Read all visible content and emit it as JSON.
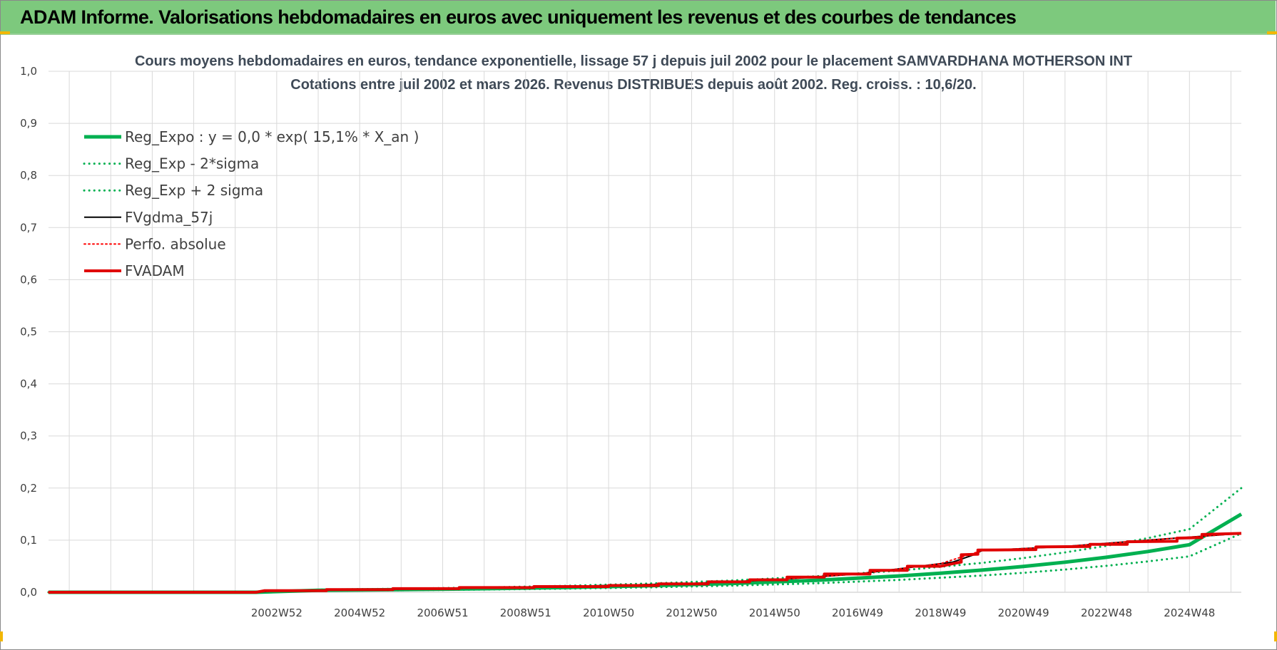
{
  "banner": {
    "title": "ADAM Informe. Valorisations hebdomadaires en euros avec uniquement les revenus et des courbes de tendances",
    "background": "#7dc97d"
  },
  "chart_data": {
    "type": "line",
    "title_line1": "Cours moyens hebdomadaires en euros, tendance exponentielle, lissage 57 j depuis juil 2002 pour le placement SAMVARDHANA MOTHERSON INT",
    "title_line2": "Cotations entre juil 2002 et mars 2026. Revenus DISTRIBUES depuis août 2002. Reg. croiss. : 10,6/20.",
    "ylim": [
      0,
      1.0
    ],
    "y_ticks": [
      "0,0",
      "0,1",
      "0,2",
      "0,3",
      "0,4",
      "0,5",
      "0,6",
      "0,7",
      "0,8",
      "0,9",
      "1,0"
    ],
    "xlim": [
      1997.5,
      2026.25
    ],
    "x_ticks": [
      {
        "label": "2002W52",
        "value": 2003.0
      },
      {
        "label": "2004W52",
        "value": 2005.0
      },
      {
        "label": "2006W51",
        "value": 2007.0
      },
      {
        "label": "2008W51",
        "value": 2009.0
      },
      {
        "label": "2010W50",
        "value": 2011.0
      },
      {
        "label": "2012W50",
        "value": 2013.0
      },
      {
        "label": "2014W50",
        "value": 2015.0
      },
      {
        "label": "2016W49",
        "value": 2017.0
      },
      {
        "label": "2018W49",
        "value": 2019.0
      },
      {
        "label": "2020W49",
        "value": 2021.0
      },
      {
        "label": "2022W48",
        "value": 2023.0
      },
      {
        "label": "2024W48",
        "value": 2025.0
      }
    ],
    "grid": true,
    "legend_position": "top-left",
    "series": [
      {
        "name": "Reg_Expo : y = 0,0 * exp( 15,1% *  X_an )",
        "color": "#00b050",
        "style": "solid",
        "width": 5,
        "x": [
          1997.5,
          2002.5,
          2004.0,
          2006.0,
          2008.0,
          2010.0,
          2012.0,
          2014.0,
          2016.0,
          2018.0,
          2019.0,
          2020.0,
          2021.0,
          2022.0,
          2023.0,
          2024.0,
          2025.0,
          2026.25
        ],
        "y": [
          0.0,
          0.0,
          0.0038,
          0.0051,
          0.0069,
          0.0093,
          0.0126,
          0.017,
          0.023,
          0.0313,
          0.0365,
          0.0425,
          0.0495,
          0.0577,
          0.0672,
          0.0783,
          0.0913,
          0.15
        ]
      },
      {
        "name": "Reg_Exp - 2*sigma",
        "color": "#00b050",
        "style": "dotted",
        "width": 3,
        "x": [
          1997.5,
          2002.5,
          2004.0,
          2006.0,
          2008.0,
          2010.0,
          2012.0,
          2014.0,
          2016.0,
          2018.0,
          2020.0,
          2021.0,
          2022.0,
          2023.0,
          2024.0,
          2025.0,
          2026.25
        ],
        "y": [
          0.0,
          0.0,
          0.0028,
          0.0038,
          0.0052,
          0.007,
          0.0095,
          0.0128,
          0.0173,
          0.0236,
          0.0321,
          0.0374,
          0.0436,
          0.0508,
          0.0592,
          0.069,
          0.113
        ]
      },
      {
        "name": "Reg_Exp + 2 sigma",
        "color": "#00b050",
        "style": "dotted",
        "width": 3,
        "x": [
          1997.5,
          2002.5,
          2004.0,
          2006.0,
          2008.0,
          2010.0,
          2012.0,
          2014.0,
          2016.0,
          2018.0,
          2020.0,
          2021.0,
          2022.0,
          2023.0,
          2024.0,
          2025.0,
          2026.25
        ],
        "y": [
          0.0,
          0.0,
          0.0051,
          0.0068,
          0.0092,
          0.0124,
          0.0168,
          0.0227,
          0.0307,
          0.0416,
          0.0564,
          0.0657,
          0.0765,
          0.0892,
          0.104,
          0.1212,
          0.2
        ]
      },
      {
        "name": "FVgdma_57j",
        "color": "#000000",
        "style": "solid",
        "width": 2,
        "x": [
          1997.5,
          2002.5,
          2003.0,
          2005.0,
          2007.0,
          2009.0,
          2011.0,
          2013.0,
          2015.0,
          2017.0,
          2018.5,
          2019.3,
          2019.8,
          2020.0,
          2022.0,
          2024.0,
          2026.25
        ],
        "y": [
          0.0,
          0.0,
          0.003,
          0.005,
          0.007,
          0.01,
          0.013,
          0.017,
          0.024,
          0.035,
          0.05,
          0.058,
          0.072,
          0.08,
          0.088,
          0.1,
          0.113
        ]
      },
      {
        "name": "Perfo. absolue",
        "color": "#ff0000",
        "style": "dotted",
        "width": 2,
        "x": [
          1997.5,
          2002.5,
          2003.0,
          2005.0,
          2007.0,
          2009.0,
          2011.0,
          2013.0,
          2015.0,
          2017.0,
          2019.0,
          2020.0,
          2022.0,
          2024.0,
          2026.25
        ],
        "y": [
          0.0,
          0.0,
          0.003,
          0.005,
          0.007,
          0.01,
          0.013,
          0.017,
          0.024,
          0.035,
          0.055,
          0.08,
          0.088,
          0.1,
          0.113
        ]
      },
      {
        "name": "FVADAM",
        "color": "#e00000",
        "style": "solid",
        "width": 4,
        "x": [
          1997.5,
          2002.5,
          2002.7,
          2004.2,
          2004.2,
          2005.8,
          2005.8,
          2007.4,
          2007.4,
          2009.2,
          2009.2,
          2011.0,
          2011.0,
          2012.2,
          2012.2,
          2013.4,
          2013.4,
          2014.4,
          2014.4,
          2015.3,
          2015.3,
          2016.2,
          2016.2,
          2017.3,
          2017.3,
          2018.2,
          2018.2,
          2019.0,
          2019.3,
          2019.5,
          2019.5,
          2019.9,
          2019.9,
          2021.3,
          2021.3,
          2022.6,
          2022.6,
          2023.5,
          2023.5,
          2024.7,
          2024.7,
          2025.3,
          2025.3,
          2026.25
        ],
        "y": [
          0.0,
          0.0,
          0.003,
          0.003,
          0.005,
          0.005,
          0.007,
          0.007,
          0.009,
          0.009,
          0.011,
          0.011,
          0.013,
          0.013,
          0.016,
          0.016,
          0.02,
          0.02,
          0.024,
          0.024,
          0.029,
          0.029,
          0.035,
          0.035,
          0.042,
          0.042,
          0.05,
          0.05,
          0.055,
          0.058,
          0.072,
          0.073,
          0.081,
          0.082,
          0.087,
          0.088,
          0.092,
          0.092,
          0.097,
          0.098,
          0.104,
          0.105,
          0.111,
          0.113
        ]
      }
    ]
  }
}
